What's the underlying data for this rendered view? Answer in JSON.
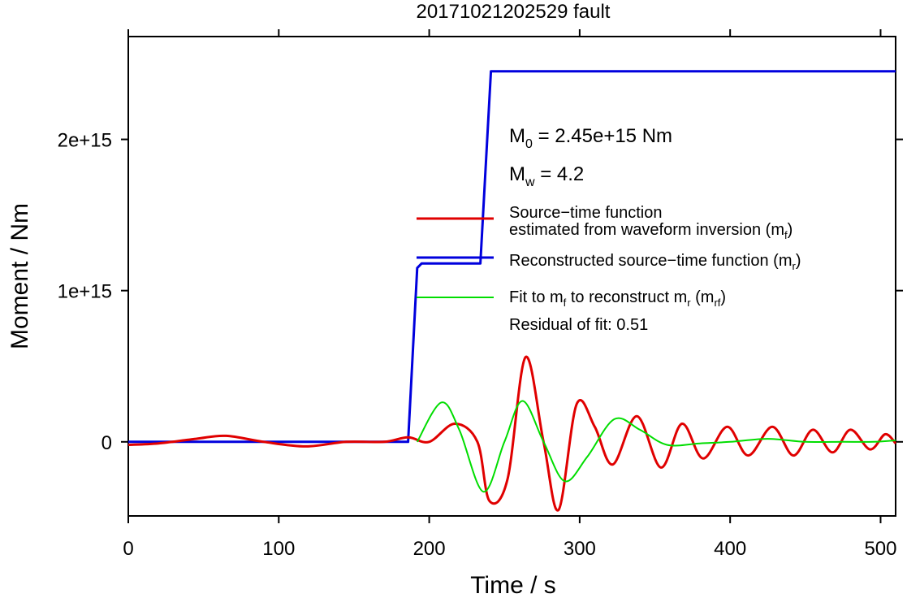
{
  "chart_data": {
    "type": "line",
    "title": "20171021202529 fault",
    "xlabel": "Time / s",
    "ylabel": "Moment / Nm",
    "xlim": [
      0,
      510
    ],
    "ylim": [
      -490000000000000.0,
      2680000000000000.0
    ],
    "xticks": [
      {
        "value": 0,
        "label": "0"
      },
      {
        "value": 100,
        "label": "100"
      },
      {
        "value": 200,
        "label": "200"
      },
      {
        "value": 300,
        "label": "300"
      },
      {
        "value": 400,
        "label": "400"
      },
      {
        "value": 500,
        "label": "500"
      }
    ],
    "yticks": [
      {
        "value": 0,
        "label": "0"
      },
      {
        "value": 1000000000000000.0,
        "label": "1e+15"
      },
      {
        "value": 2000000000000000.0,
        "label": "2e+15"
      }
    ],
    "colors": {
      "mf": "#e00000",
      "mr": "#0000dd",
      "mrf": "#00dd00"
    },
    "series": [
      {
        "key": "mr",
        "name": "Reconstructed source−time function (m_r)",
        "x": [
          0,
          186,
          192,
          195,
          234,
          241,
          510
        ],
        "y": [
          0,
          0,
          1150000000000000.0,
          1180000000000000.0,
          1180000000000000.0,
          2450000000000000.0,
          2450000000000000.0
        ]
      },
      {
        "key": "mf",
        "name": "Source−time function estimated from waveform inversion (m_f)",
        "x": [
          0,
          20,
          45,
          65,
          90,
          118,
          145,
          170,
          186,
          200,
          217,
          232,
          240,
          252,
          264,
          276,
          286,
          298,
          310,
          322,
          338,
          354,
          368,
          382,
          398,
          412,
          428,
          442,
          455,
          468,
          480,
          493,
          503,
          510
        ],
        "y": [
          -20000000000000.0,
          -10000000000000.0,
          20000000000000.0,
          40000000000000.0,
          0,
          -30000000000000.0,
          0,
          0,
          30000000000000.0,
          0,
          120000000000000.0,
          0,
          -390000000000000.0,
          -250000000000000.0,
          560000000000000.0,
          0,
          -450000000000000.0,
          250000000000000.0,
          100000000000000.0,
          -150000000000000.0,
          170000000000000.0,
          -170000000000000.0,
          120000000000000.0,
          -110000000000000.0,
          100000000000000.0,
          -90000000000000.0,
          100000000000000.0,
          -90000000000000.0,
          80000000000000.0,
          -70000000000000.0,
          80000000000000.0,
          -50000000000000.0,
          50000000000000.0,
          -10000000000000.0
        ]
      },
      {
        "key": "mrf",
        "name": "Fit to m_f to reconstruct m_r (m_rf)",
        "x": [
          192,
          208,
          220,
          236,
          250,
          262,
          276,
          290,
          305,
          323,
          340,
          358,
          380,
          400,
          425,
          450,
          475,
          495,
          510
        ],
        "y": [
          0,
          260000000000000.0,
          80000000000000.0,
          -330000000000000.0,
          0,
          270000000000000.0,
          0,
          -260000000000000.0,
          -100000000000000.0,
          150000000000000.0,
          80000000000000.0,
          -20000000000000.0,
          -10000000000000.0,
          0,
          20000000000000.0,
          0,
          0,
          0,
          10000000000000.0
        ]
      }
    ],
    "annotations": {
      "m0": {
        "prefix": "M",
        "sub": "0",
        "text": " = 2.45e+15 Nm"
      },
      "mw": {
        "prefix": "M",
        "sub": "w",
        "text": " = 4.2"
      },
      "residual": "Residual of fit: 0.51"
    },
    "legend": {
      "placement": "center-right",
      "mf": {
        "line1": "Source−time function",
        "line2": "estimated from waveform inversion (m",
        "sub": "f",
        "close": ")"
      },
      "mr": {
        "text": "Reconstructed source−time function (m",
        "sub": "r",
        "close": ")"
      },
      "mrf": {
        "t1": "Fit to m",
        "s1": "f",
        "t2": " to reconstruct m",
        "s2": "r",
        "t3": " (m",
        "s3": "rf",
        "t4": ")"
      }
    }
  }
}
